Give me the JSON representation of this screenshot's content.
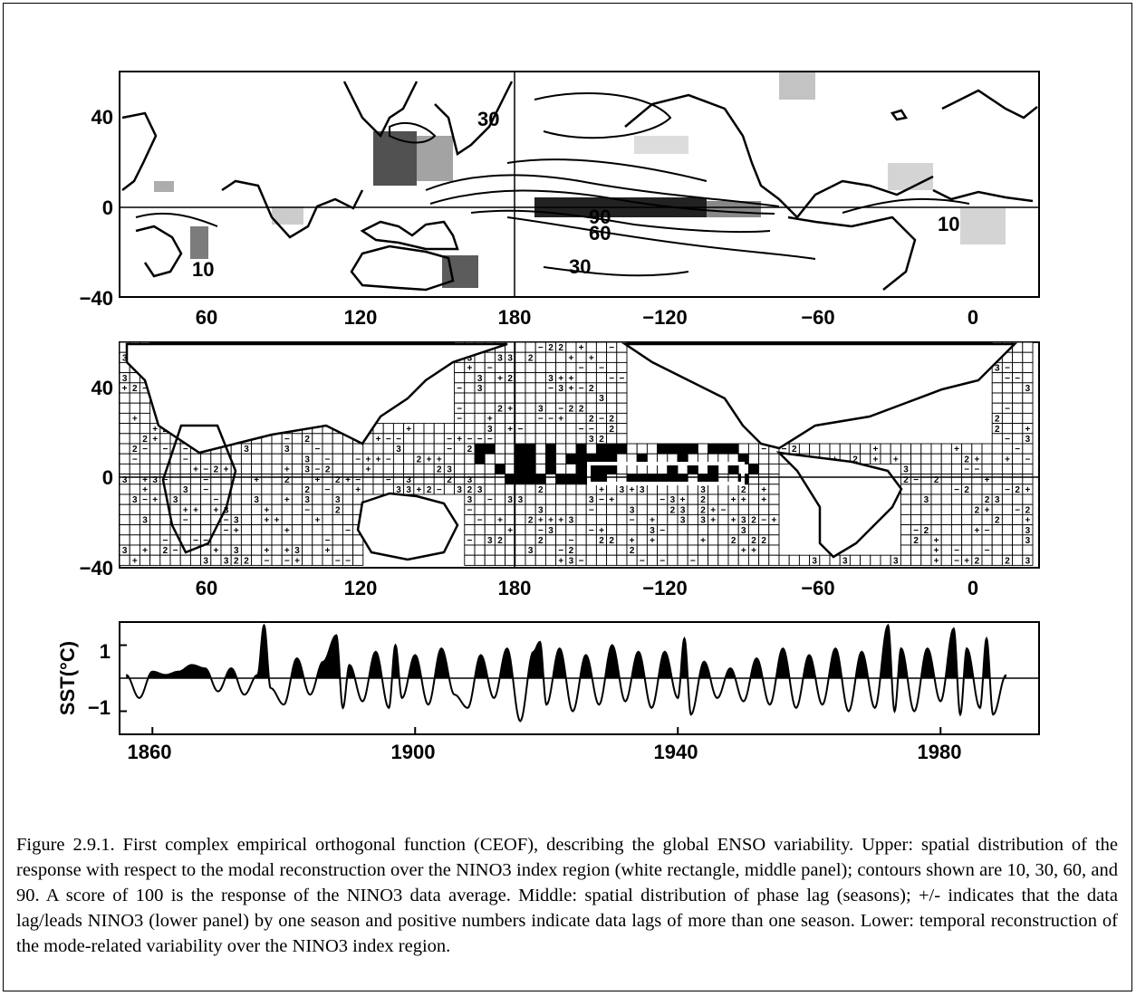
{
  "figure": {
    "upper_panel": {
      "lat_ticks": [
        "40",
        "0",
        "−40"
      ],
      "lon_ticks": [
        "60",
        "120",
        "180",
        "−120",
        "−60",
        "0"
      ],
      "contour_labels": [
        "30",
        "90",
        "60",
        "10",
        "30",
        "10"
      ]
    },
    "middle_panel": {
      "lat_ticks": [
        "40",
        "0",
        "−40"
      ],
      "lon_ticks": [
        "60",
        "120",
        "180",
        "−120",
        "−60",
        "0"
      ],
      "cell_symbols": [
        "+",
        "−",
        "2",
        "3"
      ]
    },
    "lower_panel": {
      "ylabel": "SST(°C)",
      "y_ticks": [
        "1",
        "−1"
      ],
      "x_ticks": [
        "1860",
        "1900",
        "1940",
        "1980"
      ]
    },
    "chart_data": {
      "type": "line",
      "title": "",
      "xlabel": "",
      "ylabel": "SST(°C)",
      "xlim": [
        1855,
        1995
      ],
      "ylim": [
        -1.7,
        1.7
      ],
      "x_ticks": [
        1860,
        1900,
        1940,
        1980
      ],
      "y_ticks": [
        1,
        -1
      ],
      "positive_fill": "#000000",
      "x": [
        1856,
        1858,
        1860,
        1862,
        1864,
        1866,
        1868,
        1870,
        1872,
        1874,
        1876,
        1877,
        1878,
        1880,
        1882,
        1884,
        1886,
        1888,
        1889,
        1890,
        1892,
        1894,
        1896,
        1897,
        1898,
        1900,
        1902,
        1904,
        1906,
        1908,
        1910,
        1912,
        1914,
        1916,
        1918,
        1919,
        1920,
        1922,
        1924,
        1926,
        1928,
        1930,
        1932,
        1934,
        1936,
        1938,
        1940,
        1941,
        1942,
        1944,
        1946,
        1948,
        1950,
        1952,
        1954,
        1956,
        1958,
        1960,
        1962,
        1964,
        1966,
        1968,
        1970,
        1972,
        1973,
        1974,
        1976,
        1978,
        1980,
        1982,
        1983,
        1984,
        1986,
        1987,
        1988,
        1990
      ],
      "y": [
        0.1,
        -0.6,
        0.2,
        0.1,
        0.2,
        0.4,
        0.3,
        -0.4,
        0.3,
        -0.5,
        0.1,
        1.6,
        -0.3,
        -0.8,
        0.6,
        -0.5,
        0.5,
        1.3,
        -0.9,
        0.4,
        -0.7,
        0.8,
        -0.9,
        1.0,
        -0.6,
        0.7,
        -0.8,
        0.9,
        -0.5,
        -0.9,
        0.7,
        -0.6,
        0.9,
        -1.3,
        0.8,
        1.1,
        -0.8,
        0.9,
        -1.0,
        0.7,
        -0.8,
        1.0,
        -0.7,
        0.8,
        -0.9,
        0.8,
        -0.6,
        1.2,
        -1.1,
        0.5,
        -0.6,
        0.3,
        -0.7,
        0.6,
        -0.8,
        0.9,
        -0.9,
        0.7,
        -0.8,
        0.9,
        -1.0,
        0.8,
        -0.9,
        1.6,
        -1.0,
        0.9,
        -1.0,
        0.9,
        -0.7,
        1.5,
        -1.1,
        0.9,
        -0.9,
        1.2,
        -1.1,
        0.1
      ]
    },
    "caption": "Figure 2.9.1.  First complex empirical orthogonal function (CEOF), describing the global ENSO variability. Upper: spatial distribution of the response with respect to the modal reconstruction over the NINO3 index region (white rectangle, middle panel); contours shown are 10, 30, 60, and 90.  A score of 100 is the response of the NINO3 data average.  Middle: spatial distribution of phase lag (seasons); +/- indicates that the data lag/leads NINO3 (lower panel) by one season and positive numbers indicate data lags of more than one season.  Lower: temporal reconstruction of the mode-related variability over the NINO3 index region."
  }
}
